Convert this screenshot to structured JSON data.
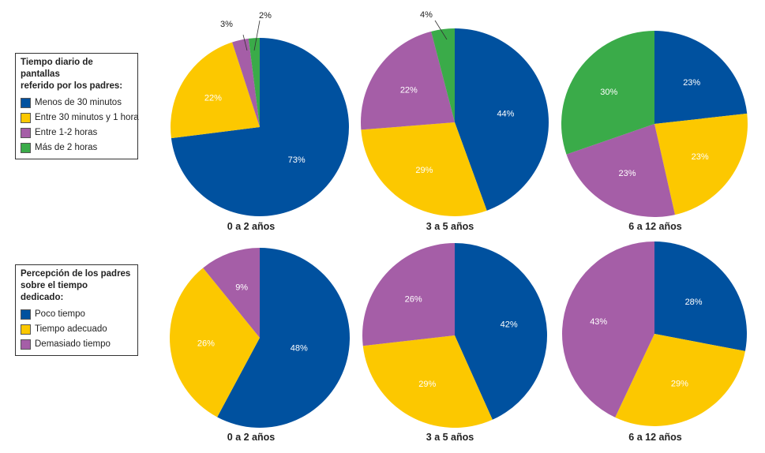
{
  "colors": {
    "blue": "#00519f",
    "yellow": "#fcc800",
    "purple": "#a55ea7",
    "green": "#3aab49"
  },
  "legend_top": {
    "title_line1": "Tiempo diario de pantallas",
    "title_line2": "referido por los padres:",
    "items": [
      {
        "label": "Menos de 30 minutos",
        "color": "#00519f"
      },
      {
        "label": "Entre 30 minutos y 1 hora",
        "color": "#fcc800"
      },
      {
        "label": "Entre 1-2 horas",
        "color": "#a55ea7"
      },
      {
        "label": "Más de 2 horas",
        "color": "#3aab49"
      }
    ]
  },
  "legend_bottom": {
    "title_line1": "Percepción de los padres",
    "title_line2": "sobre el tiempo dedicado:",
    "items": [
      {
        "label": "Poco tiempo",
        "color": "#00519f"
      },
      {
        "label": "Tiempo adecuado",
        "color": "#fcc800"
      },
      {
        "label": "Demasiado tiempo",
        "color": "#a55ea7"
      }
    ]
  },
  "chart_data": [
    {
      "type": "pie",
      "title": "0 a 2 años",
      "values": [
        73,
        22,
        3,
        2
      ],
      "labels": [
        "73%",
        "22%",
        "3%",
        "2%"
      ],
      "colors": [
        "#00519f",
        "#fcc800",
        "#a55ea7",
        "#3aab49"
      ]
    },
    {
      "type": "pie",
      "title": "3 a 5 años",
      "values": [
        44,
        29,
        22,
        4
      ],
      "labels": [
        "44%",
        "29%",
        "22%",
        "4%"
      ],
      "colors": [
        "#00519f",
        "#fcc800",
        "#a55ea7",
        "#3aab49"
      ]
    },
    {
      "type": "pie",
      "title": "6 a 12 años",
      "values": [
        23,
        23,
        23,
        30
      ],
      "labels": [
        "23%",
        "23%",
        "23%",
        "30%"
      ],
      "colors": [
        "#00519f",
        "#fcc800",
        "#a55ea7",
        "#3aab49"
      ]
    },
    {
      "type": "pie",
      "title": "0 a 2 años",
      "values": [
        48,
        26,
        9
      ],
      "labels": [
        "48%",
        "26%",
        "9%"
      ],
      "colors": [
        "#00519f",
        "#fcc800",
        "#a55ea7"
      ]
    },
    {
      "type": "pie",
      "title": "3 a 5 años",
      "values": [
        42,
        29,
        26
      ],
      "labels": [
        "42%",
        "29%",
        "26%"
      ],
      "colors": [
        "#00519f",
        "#fcc800",
        "#a55ea7"
      ]
    },
    {
      "type": "pie",
      "title": "6 a 12 años",
      "values": [
        28,
        29,
        43
      ],
      "labels": [
        "28%",
        "29%",
        "43%"
      ],
      "colors": [
        "#00519f",
        "#fcc800",
        "#a55ea7"
      ]
    }
  ]
}
